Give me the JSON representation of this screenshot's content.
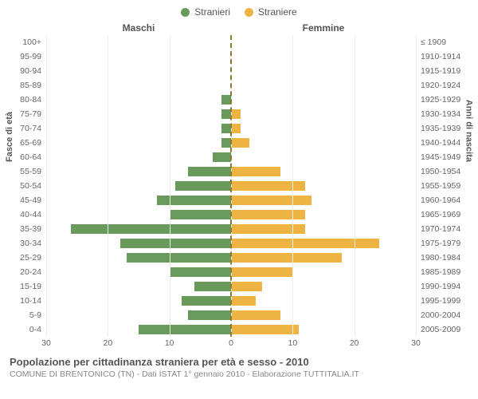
{
  "legend": {
    "male": "Stranieri",
    "female": "Straniere"
  },
  "headers": {
    "male": "Maschi",
    "female": "Femmine"
  },
  "axis_titles": {
    "left": "Fasce di età",
    "right": "Anni di nascita"
  },
  "colors": {
    "male": "#6a9a5b",
    "female": "#eeb443",
    "background": "#ffffff",
    "grid": "#ededed",
    "center_line": "#8a7a3a",
    "text": "#555555",
    "subtext": "#888888"
  },
  "chart": {
    "type": "population-pyramid",
    "x_max": 30,
    "x_ticks_left": [
      30,
      20,
      10,
      0
    ],
    "x_ticks_right": [
      0,
      10,
      20,
      30
    ],
    "rows": [
      {
        "age": "100+",
        "birth": "≤ 1909",
        "m": 0,
        "f": 0
      },
      {
        "age": "95-99",
        "birth": "1910-1914",
        "m": 0,
        "f": 0
      },
      {
        "age": "90-94",
        "birth": "1915-1919",
        "m": 0,
        "f": 0
      },
      {
        "age": "85-89",
        "birth": "1920-1924",
        "m": 0,
        "f": 0
      },
      {
        "age": "80-84",
        "birth": "1925-1929",
        "m": 1.5,
        "f": 0
      },
      {
        "age": "75-79",
        "birth": "1930-1934",
        "m": 1.5,
        "f": 1.5
      },
      {
        "age": "70-74",
        "birth": "1935-1939",
        "m": 1.5,
        "f": 1.5
      },
      {
        "age": "65-69",
        "birth": "1940-1944",
        "m": 1.5,
        "f": 3
      },
      {
        "age": "60-64",
        "birth": "1945-1949",
        "m": 3,
        "f": 0
      },
      {
        "age": "55-59",
        "birth": "1950-1954",
        "m": 7,
        "f": 8
      },
      {
        "age": "50-54",
        "birth": "1955-1959",
        "m": 9,
        "f": 12
      },
      {
        "age": "45-49",
        "birth": "1960-1964",
        "m": 12,
        "f": 13
      },
      {
        "age": "40-44",
        "birth": "1965-1969",
        "m": 10,
        "f": 12
      },
      {
        "age": "35-39",
        "birth": "1970-1974",
        "m": 26,
        "f": 12
      },
      {
        "age": "30-34",
        "birth": "1975-1979",
        "m": 18,
        "f": 24
      },
      {
        "age": "25-29",
        "birth": "1980-1984",
        "m": 17,
        "f": 18
      },
      {
        "age": "20-24",
        "birth": "1985-1989",
        "m": 10,
        "f": 10
      },
      {
        "age": "15-19",
        "birth": "1990-1994",
        "m": 6,
        "f": 5
      },
      {
        "age": "10-14",
        "birth": "1995-1999",
        "m": 8,
        "f": 4
      },
      {
        "age": "5-9",
        "birth": "2000-2004",
        "m": 7,
        "f": 8
      },
      {
        "age": "0-4",
        "birth": "2005-2009",
        "m": 15,
        "f": 11
      }
    ]
  },
  "footer": {
    "title": "Popolazione per cittadinanza straniera per età e sesso - 2010",
    "subtitle": "COMUNE DI BRENTONICO (TN) - Dati ISTAT 1° gennaio 2010 - Elaborazione TUTTITALIA.IT"
  }
}
